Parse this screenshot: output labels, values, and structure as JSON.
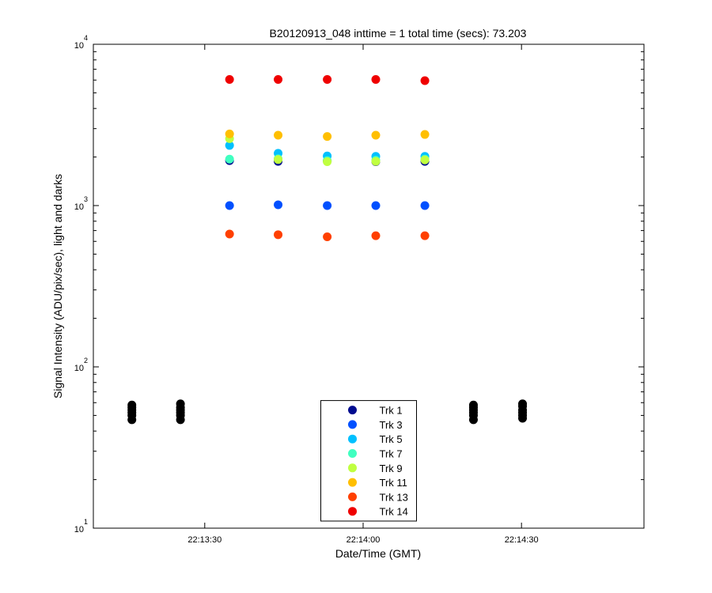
{
  "chart_data": {
    "type": "scatter",
    "title": "B20120913_048 inttime = 1 total time (secs): 73.203",
    "x_label": "Date/Time (GMT)",
    "y_label": "Signal Intensity (ADU/pix/sec), light and darks",
    "log_y": true,
    "legend": "lower center",
    "grid": false,
    "xlim": [
      "22:13:08.9",
      "22:14:53.2"
    ],
    "xticks": [
      "22:13:30",
      "22:14:00",
      "22:14:30"
    ],
    "ylim": [
      10,
      10000
    ],
    "yticks": [
      {
        "value": 10,
        "label": "10",
        "exponent": "1"
      },
      {
        "value": 100,
        "label": "10",
        "exponent": "2"
      },
      {
        "value": 1000,
        "label": "10",
        "exponent": "3"
      },
      {
        "value": 10000,
        "label": "10",
        "exponent": "4"
      }
    ],
    "series": [
      {
        "color": "#000000",
        "x": [
          "22:13:16.2",
          "22:13:16.2",
          "22:13:16.2",
          "22:13:16.2",
          "22:13:16.2",
          "22:13:16.2",
          "22:13:25.4",
          "22:13:25.4",
          "22:13:25.4",
          "22:13:25.4",
          "22:13:25.4",
          "22:13:25.4",
          "22:14:20.9",
          "22:14:20.9",
          "22:14:20.9",
          "22:14:20.9",
          "22:14:20.9",
          "22:14:20.9",
          "22:14:30.2",
          "22:14:30.2",
          "22:14:30.2",
          "22:14:30.2",
          "22:14:30.2",
          "22:14:30.2"
        ],
        "values": [
          47,
          50,
          52,
          54,
          56,
          58,
          47,
          50,
          52,
          54,
          56,
          59,
          47,
          50,
          52,
          54,
          56,
          58,
          48,
          50,
          52,
          54,
          57,
          59
        ]
      },
      {
        "name": "Trk 1",
        "color": "#000c8f",
        "x": [
          "22:13:34.7",
          "22:13:43.9",
          "22:13:53.2",
          "22:14:02.4",
          "22:14:11.7"
        ],
        "values": [
          1900,
          1880,
          1890,
          1870,
          1880
        ]
      },
      {
        "name": "Trk 3",
        "color": "#0050ff",
        "x": [
          "22:13:34.7",
          "22:13:43.9",
          "22:13:53.2",
          "22:14:02.4",
          "22:14:11.7"
        ],
        "values": [
          1000,
          1011,
          1000,
          1000,
          1000
        ]
      },
      {
        "name": "Trk 5",
        "color": "#00c0ff",
        "x": [
          "22:13:34.7",
          "22:13:43.9",
          "22:13:53.2",
          "22:14:02.4",
          "22:14:11.7"
        ],
        "values": [
          2360,
          2110,
          2030,
          2020,
          2020
        ]
      },
      {
        "name": "Trk 7",
        "color": "#40ffc0",
        "x": [
          "22:13:34.7",
          "22:13:43.9",
          "22:13:53.2",
          "22:14:02.4",
          "22:14:11.7"
        ],
        "values": [
          1940,
          1950,
          1900,
          1910,
          1940
        ]
      },
      {
        "name": "Trk 9",
        "color": "#c0ff40",
        "x": [
          "22:13:34.7",
          "22:13:43.9",
          "22:13:53.2",
          "22:14:02.4",
          "22:14:11.7"
        ],
        "values": [
          2600,
          1930,
          1870,
          1880,
          1920
        ]
      },
      {
        "name": "Trk 11",
        "color": "#ffbf00",
        "x": [
          "22:13:34.7",
          "22:13:43.9",
          "22:13:53.2",
          "22:14:02.4",
          "22:14:11.7"
        ],
        "values": [
          2780,
          2730,
          2680,
          2730,
          2760
        ]
      },
      {
        "name": "Trk 13",
        "color": "#ff4000",
        "x": [
          "22:13:34.7",
          "22:13:43.9",
          "22:13:53.2",
          "22:14:02.4",
          "22:14:11.7"
        ],
        "values": [
          666,
          660,
          640,
          650,
          650
        ]
      },
      {
        "name": "Trk 14",
        "color": "#ef0000",
        "x": [
          "22:13:34.7",
          "22:13:43.9",
          "22:13:53.2",
          "22:14:02.4",
          "22:14:11.7"
        ],
        "values": [
          6050,
          6050,
          6050,
          6050,
          5950
        ]
      }
    ]
  }
}
